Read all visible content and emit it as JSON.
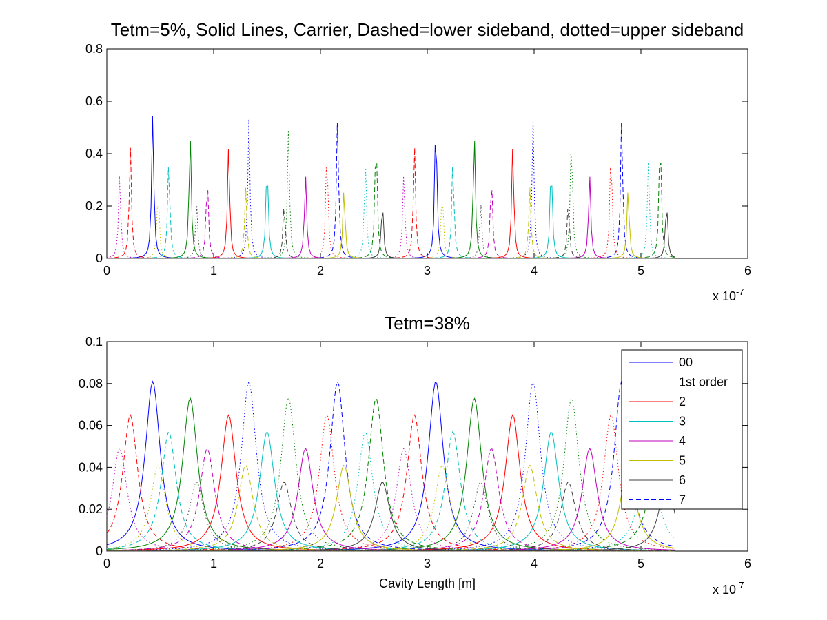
{
  "chart_data": [
    {
      "type": "line",
      "title": "Tetm=5%, Solid Lines, Carrier, Dashed=lower sideband, dotted=upper sideband",
      "xlabel": "",
      "ylabel": "",
      "xlim": [
        0,
        6
      ],
      "ylim": [
        0,
        0.8
      ],
      "x_ticks": [
        "0",
        "1",
        "2",
        "3",
        "4",
        "5",
        "6"
      ],
      "y_ticks": [
        "0",
        "0.2",
        "0.4",
        "0.6",
        "0.8"
      ],
      "x_exponent": {
        "base": "x 10",
        "power": "-7"
      },
      "grid": false,
      "linestyles": {
        "carrier": "solid",
        "lower_sideband": "dashed",
        "upper_sideband": "dotted"
      },
      "resonance_width": 0.012,
      "x_end": 5.32,
      "series": [
        {
          "color": "#0000ff",
          "peaks": [
            {
              "x": 0.43,
              "h": 0.55,
              "style": "solid"
            },
            {
              "x": 3.08,
              "h": 0.55,
              "style": "solid"
            },
            {
              "x": 2.16,
              "h": 0.54,
              "style": "dashed"
            },
            {
              "x": 4.82,
              "h": 0.54,
              "style": "dashed"
            },
            {
              "x": 1.33,
              "h": 0.53,
              "style": "dotted"
            },
            {
              "x": 3.99,
              "h": 0.53,
              "style": "dotted"
            }
          ]
        },
        {
          "color": "#008000",
          "peaks": [
            {
              "x": 0.78,
              "h": 0.48,
              "style": "solid"
            },
            {
              "x": 3.44,
              "h": 0.48,
              "style": "solid"
            },
            {
              "x": 2.52,
              "h": 0.49,
              "style": "dashed"
            },
            {
              "x": 5.18,
              "h": 0.49,
              "style": "dashed"
            },
            {
              "x": 1.7,
              "h": 0.49,
              "style": "dotted"
            },
            {
              "x": 4.35,
              "h": 0.49,
              "style": "dotted"
            }
          ]
        },
        {
          "color": "#ff0000",
          "peaks": [
            {
              "x": 1.14,
              "h": 0.43,
              "style": "solid"
            },
            {
              "x": 3.8,
              "h": 0.43,
              "style": "solid"
            },
            {
              "x": 0.22,
              "h": 0.43,
              "style": "dashed"
            },
            {
              "x": 2.88,
              "h": 0.43,
              "style": "dashed"
            },
            {
              "x": 2.06,
              "h": 0.43,
              "style": "dotted"
            },
            {
              "x": 4.72,
              "h": 0.43,
              "style": "dotted"
            }
          ]
        },
        {
          "color": "#00bfbf",
          "peaks": [
            {
              "x": 1.5,
              "h": 0.38,
              "style": "solid"
            },
            {
              "x": 4.16,
              "h": 0.38,
              "style": "solid"
            },
            {
              "x": 0.58,
              "h": 0.38,
              "style": "dashed"
            },
            {
              "x": 3.24,
              "h": 0.38,
              "style": "dashed"
            },
            {
              "x": 2.42,
              "h": 0.37,
              "style": "dotted"
            },
            {
              "x": 5.07,
              "h": 0.37,
              "style": "dotted"
            }
          ]
        },
        {
          "color": "#bf00bf",
          "peaks": [
            {
              "x": 1.86,
              "h": 0.32,
              "style": "solid"
            },
            {
              "x": 4.52,
              "h": 0.32,
              "style": "solid"
            },
            {
              "x": 0.94,
              "h": 0.32,
              "style": "dashed"
            },
            {
              "x": 3.6,
              "h": 0.32,
              "style": "dashed"
            },
            {
              "x": 0.12,
              "h": 0.32,
              "style": "dotted"
            },
            {
              "x": 2.78,
              "h": 0.32,
              "style": "dotted"
            }
          ]
        },
        {
          "color": "#bfbf00",
          "peaks": [
            {
              "x": 2.22,
              "h": 0.27,
              "style": "solid"
            },
            {
              "x": 4.88,
              "h": 0.27,
              "style": "solid"
            },
            {
              "x": 1.3,
              "h": 0.27,
              "style": "dashed"
            },
            {
              "x": 3.96,
              "h": 0.27,
              "style": "dashed"
            },
            {
              "x": 0.48,
              "h": 0.27,
              "style": "dotted"
            },
            {
              "x": 3.14,
              "h": 0.27,
              "style": "dotted"
            }
          ]
        },
        {
          "color": "#404040",
          "peaks": [
            {
              "x": 2.58,
              "h": 0.22,
              "style": "solid"
            },
            {
              "x": 5.24,
              "h": 0.22,
              "style": "solid"
            },
            {
              "x": 1.66,
              "h": 0.22,
              "style": "dashed"
            },
            {
              "x": 4.32,
              "h": 0.22,
              "style": "dashed"
            },
            {
              "x": 0.84,
              "h": 0.21,
              "style": "dotted"
            },
            {
              "x": 3.5,
              "h": 0.21,
              "style": "dotted"
            }
          ]
        }
      ]
    },
    {
      "type": "line",
      "title": "Tetm=38%",
      "xlabel": "Cavity Length [m]",
      "ylabel": "",
      "xlim": [
        0,
        6
      ],
      "ylim": [
        0,
        0.1
      ],
      "x_ticks": [
        "0",
        "1",
        "2",
        "3",
        "4",
        "5",
        "6"
      ],
      "y_ticks": [
        "0",
        "0.02",
        "0.04",
        "0.06",
        "0.08",
        "0.1"
      ],
      "x_exponent": {
        "base": "x 10",
        "power": "-7"
      },
      "grid": false,
      "legend_position": "top-right",
      "resonance_width": 0.085,
      "x_end": 5.32,
      "series": [
        {
          "name": "00",
          "color": "#0000ff",
          "peaks": [
            {
              "x": 0.43,
              "h": 0.081,
              "style": "solid"
            },
            {
              "x": 3.08,
              "h": 0.081,
              "style": "solid"
            },
            {
              "x": 2.16,
              "h": 0.081,
              "style": "dashed"
            },
            {
              "x": 4.82,
              "h": 0.081,
              "style": "dashed"
            },
            {
              "x": 1.33,
              "h": 0.081,
              "style": "dotted"
            },
            {
              "x": 3.99,
              "h": 0.081,
              "style": "dotted"
            }
          ]
        },
        {
          "name": "1st order",
          "color": "#008000",
          "peaks": [
            {
              "x": 0.78,
              "h": 0.073,
              "style": "solid"
            },
            {
              "x": 3.44,
              "h": 0.073,
              "style": "solid"
            },
            {
              "x": 2.52,
              "h": 0.073,
              "style": "dashed"
            },
            {
              "x": 5.18,
              "h": 0.073,
              "style": "dashed"
            },
            {
              "x": 1.7,
              "h": 0.073,
              "style": "dotted"
            },
            {
              "x": 4.35,
              "h": 0.073,
              "style": "dotted"
            }
          ]
        },
        {
          "name": "2",
          "color": "#ff0000",
          "peaks": [
            {
              "x": 1.14,
              "h": 0.065,
              "style": "solid"
            },
            {
              "x": 3.8,
              "h": 0.065,
              "style": "solid"
            },
            {
              "x": 0.22,
              "h": 0.065,
              "style": "dashed"
            },
            {
              "x": 2.88,
              "h": 0.065,
              "style": "dashed"
            },
            {
              "x": 2.06,
              "h": 0.065,
              "style": "dotted"
            },
            {
              "x": 4.72,
              "h": 0.065,
              "style": "dotted"
            }
          ]
        },
        {
          "name": "3",
          "color": "#00bfbf",
          "peaks": [
            {
              "x": 1.5,
              "h": 0.057,
              "style": "solid"
            },
            {
              "x": 4.16,
              "h": 0.057,
              "style": "solid"
            },
            {
              "x": 0.58,
              "h": 0.057,
              "style": "dashed"
            },
            {
              "x": 3.24,
              "h": 0.057,
              "style": "dashed"
            },
            {
              "x": 2.42,
              "h": 0.057,
              "style": "dotted"
            },
            {
              "x": 5.07,
              "h": 0.057,
              "style": "dotted"
            }
          ]
        },
        {
          "name": "4",
          "color": "#bf00bf",
          "peaks": [
            {
              "x": 1.86,
              "h": 0.049,
              "style": "solid"
            },
            {
              "x": 4.52,
              "h": 0.049,
              "style": "solid"
            },
            {
              "x": 0.94,
              "h": 0.049,
              "style": "dashed"
            },
            {
              "x": 3.6,
              "h": 0.049,
              "style": "dashed"
            },
            {
              "x": 0.12,
              "h": 0.049,
              "style": "dotted"
            },
            {
              "x": 2.78,
              "h": 0.049,
              "style": "dotted"
            }
          ]
        },
        {
          "name": "5",
          "color": "#bfbf00",
          "peaks": [
            {
              "x": 2.22,
              "h": 0.041,
              "style": "solid"
            },
            {
              "x": 4.88,
              "h": 0.041,
              "style": "solid"
            },
            {
              "x": 1.3,
              "h": 0.041,
              "style": "dashed"
            },
            {
              "x": 3.96,
              "h": 0.041,
              "style": "dashed"
            },
            {
              "x": 0.48,
              "h": 0.041,
              "style": "dotted"
            },
            {
              "x": 3.14,
              "h": 0.041,
              "style": "dotted"
            }
          ]
        },
        {
          "name": "6",
          "color": "#404040",
          "peaks": [
            {
              "x": 2.58,
              "h": 0.033,
              "style": "solid"
            },
            {
              "x": 5.24,
              "h": 0.033,
              "style": "solid"
            },
            {
              "x": 1.66,
              "h": 0.033,
              "style": "dashed"
            },
            {
              "x": 4.32,
              "h": 0.033,
              "style": "dashed"
            },
            {
              "x": 0.84,
              "h": 0.033,
              "style": "dotted"
            },
            {
              "x": 3.5,
              "h": 0.033,
              "style": "dotted"
            }
          ]
        }
      ],
      "legend": [
        {
          "label": "00",
          "color": "#0000ff",
          "style": "solid"
        },
        {
          "label": "1st order",
          "color": "#008000",
          "style": "solid"
        },
        {
          "label": "2",
          "color": "#ff0000",
          "style": "solid"
        },
        {
          "label": "3",
          "color": "#00bfbf",
          "style": "solid"
        },
        {
          "label": "4",
          "color": "#bf00bf",
          "style": "solid"
        },
        {
          "label": "5",
          "color": "#bfbf00",
          "style": "solid"
        },
        {
          "label": "6",
          "color": "#404040",
          "style": "solid"
        },
        {
          "label": "7",
          "color": "#0000ff",
          "style": "dashed"
        }
      ]
    }
  ]
}
